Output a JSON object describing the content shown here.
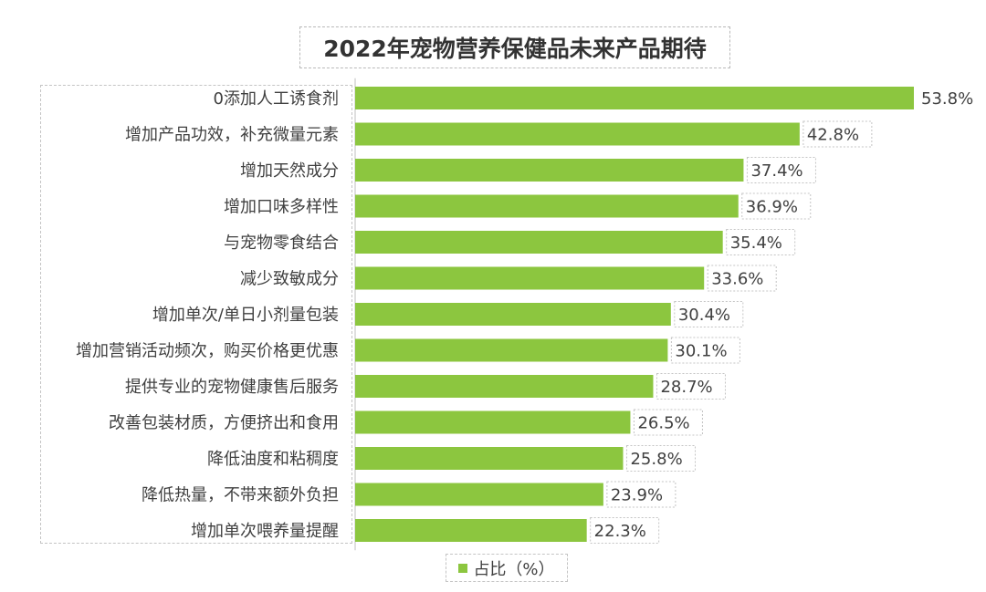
{
  "chart_data": {
    "type": "bar",
    "orientation": "horizontal",
    "title": "2022年宠物营养保健品未来产品期待",
    "categories": [
      "0添加人工诱食剂",
      "增加产品功效，补充微量元素",
      "增加天然成分",
      "增加口味多样性",
      "与宠物零食结合",
      "减少致敏成分",
      "增加单次/单日小剂量包装",
      "增加营销活动频次，购买价格更优惠",
      "提供专业的宠物健康售后服务",
      "改善包装材质，方便挤出和食用",
      "降低油度和粘稠度",
      "降低热量，不带来额外负担",
      "增加单次喂养量提醒"
    ],
    "series": [
      {
        "name": "占比（%）",
        "values": [
          53.8,
          42.8,
          37.4,
          36.9,
          35.4,
          33.6,
          30.4,
          30.1,
          28.7,
          26.5,
          25.8,
          23.9,
          22.3
        ],
        "value_labels": [
          "53.8%",
          "42.8%",
          "37.4%",
          "36.9%",
          "35.4%",
          "33.6%",
          "30.4%",
          "30.1%",
          "28.7%",
          "26.5%",
          "25.8%",
          "23.9%",
          "22.3%"
        ]
      }
    ],
    "xlim": [
      0,
      53.8
    ],
    "grid": false,
    "legend_position": "bottom",
    "bar_color": "#8cc63f"
  }
}
